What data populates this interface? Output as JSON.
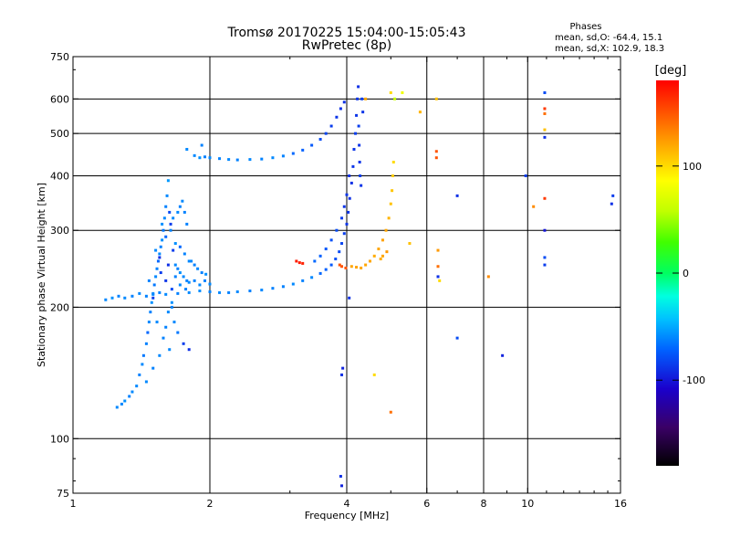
{
  "chart_data": {
    "type": "scatter",
    "title": "Tromsø 20170225 15:04:00-15:05:43",
    "subtitle": "RwPretec (8p)",
    "xlabel": "Frequency [MHz]",
    "ylabel": "Stationary phase Virtual Height [km]",
    "x_scale": "log",
    "y_scale": "log",
    "xlim": [
      1,
      16
    ],
    "ylim": [
      75,
      750
    ],
    "x_ticks": [
      1,
      2,
      4,
      6,
      8,
      10,
      16
    ],
    "x_tick_labels": [
      "1",
      "2",
      "4",
      "6",
      "8",
      "10",
      "16"
    ],
    "x_grid": [
      2,
      4,
      6,
      8,
      10,
      16
    ],
    "y_ticks": [
      75,
      100,
      200,
      300,
      400,
      500,
      600,
      750
    ],
    "y_tick_labels": [
      "75",
      "100",
      "200",
      "300",
      "400",
      "500",
      "600",
      "750"
    ],
    "y_grid": [
      100,
      200,
      300,
      400,
      500,
      600
    ],
    "grid": true,
    "phase_stats": {
      "heading": "Phases",
      "line_o": "mean, sd,O: -64.4, 15.1",
      "line_x": "mean, sd,X: 102.9, 18.3"
    },
    "colorbar": {
      "label": "[deg]",
      "range": [
        -180,
        180
      ],
      "ticks": [
        -100,
        0,
        100
      ],
      "tick_labels": [
        "-100",
        "0",
        "100"
      ]
    },
    "series": [
      {
        "points": [
          [
            1.25,
            118,
            -60
          ],
          [
            1.28,
            120,
            -60
          ],
          [
            1.3,
            122,
            -58
          ],
          [
            1.33,
            125,
            -62
          ],
          [
            1.35,
            128,
            -60
          ],
          [
            1.38,
            132,
            -60
          ],
          [
            1.4,
            140,
            -62
          ],
          [
            1.42,
            148,
            -60
          ],
          [
            1.43,
            155,
            -65
          ],
          [
            1.45,
            165,
            -62
          ],
          [
            1.46,
            175,
            -70
          ],
          [
            1.47,
            185,
            -60
          ],
          [
            1.48,
            195,
            -62
          ],
          [
            1.49,
            205,
            -58
          ],
          [
            1.5,
            215,
            -60
          ],
          [
            1.51,
            225,
            -65
          ],
          [
            1.52,
            235,
            -60
          ],
          [
            1.53,
            245,
            -62
          ],
          [
            1.54,
            255,
            -70
          ],
          [
            1.55,
            265,
            -60
          ],
          [
            1.56,
            275,
            -62
          ],
          [
            1.57,
            285,
            -58
          ],
          [
            1.58,
            300,
            -65
          ],
          [
            1.59,
            320,
            -60
          ],
          [
            1.6,
            340,
            -62
          ],
          [
            1.61,
            360,
            -60
          ],
          [
            1.62,
            390,
            -55
          ],
          [
            1.63,
            330,
            -80
          ],
          [
            1.64,
            310,
            -85
          ],
          [
            1.62,
            250,
            -90
          ],
          [
            1.56,
            240,
            -85
          ],
          [
            1.6,
            230,
            -88
          ],
          [
            1.65,
            220,
            -80
          ],
          [
            1.5,
            210,
            -85
          ],
          [
            1.55,
            260,
            -90
          ],
          [
            1.66,
            270,
            -85
          ],
          [
            1.68,
            250,
            -60
          ],
          [
            1.7,
            245,
            -62
          ],
          [
            1.72,
            240,
            -58
          ],
          [
            1.75,
            235,
            -60
          ],
          [
            1.78,
            230,
            -62
          ],
          [
            1.8,
            228,
            -60
          ],
          [
            1.85,
            230,
            -62
          ],
          [
            1.9,
            225,
            -60
          ],
          [
            1.95,
            230,
            -62
          ],
          [
            2.0,
            226,
            -60
          ],
          [
            1.7,
            330,
            -60
          ],
          [
            1.72,
            340,
            -62
          ],
          [
            1.74,
            350,
            -60
          ],
          [
            1.76,
            330,
            -62
          ],
          [
            1.78,
            310,
            -62
          ],
          [
            1.68,
            280,
            -58
          ],
          [
            1.72,
            275,
            -70
          ],
          [
            1.76,
            265,
            -62
          ],
          [
            1.8,
            255,
            -60
          ],
          [
            1.65,
            200,
            -62
          ],
          [
            1.67,
            185,
            -60
          ],
          [
            1.7,
            175,
            -65
          ],
          [
            1.75,
            165,
            -85
          ],
          [
            1.8,
            160,
            -90
          ],
          [
            1.82,
            255,
            -60
          ],
          [
            1.85,
            250,
            -62
          ],
          [
            1.88,
            245,
            -60
          ],
          [
            1.92,
            240,
            -62
          ],
          [
            1.96,
            238,
            -58
          ],
          [
            1.18,
            208,
            -60
          ],
          [
            1.22,
            210,
            -58
          ],
          [
            1.26,
            212,
            -62
          ],
          [
            1.3,
            210,
            -60
          ],
          [
            1.35,
            212,
            -62
          ],
          [
            1.4,
            215,
            -60
          ],
          [
            1.45,
            212,
            -62
          ],
          [
            1.5,
            214,
            -60
          ],
          [
            1.55,
            216,
            -62
          ],
          [
            1.6,
            214,
            -60
          ],
          [
            1.7,
            215,
            -62
          ],
          [
            1.8,
            216,
            -60
          ],
          [
            1.9,
            218,
            -58
          ],
          [
            2.0,
            217,
            -62
          ],
          [
            2.1,
            216,
            -60
          ],
          [
            2.2,
            216,
            -62
          ],
          [
            2.3,
            217,
            -60
          ],
          [
            2.45,
            218,
            -62
          ],
          [
            2.6,
            219,
            -60
          ],
          [
            2.75,
            221,
            -62
          ],
          [
            2.9,
            223,
            -62
          ],
          [
            3.05,
            226,
            -60
          ],
          [
            3.2,
            230,
            -62
          ],
          [
            3.35,
            234,
            -60
          ],
          [
            3.5,
            239,
            -70
          ],
          [
            3.6,
            244,
            -72
          ],
          [
            3.7,
            250,
            -75
          ],
          [
            3.78,
            258,
            -78
          ],
          [
            3.85,
            268,
            -80
          ],
          [
            3.9,
            280,
            -82
          ],
          [
            3.95,
            295,
            -85
          ],
          [
            4.0,
            310,
            -88
          ],
          [
            4.03,
            330,
            -88
          ],
          [
            4.06,
            355,
            -90
          ],
          [
            4.1,
            385,
            -90
          ],
          [
            4.13,
            420,
            -88
          ],
          [
            4.15,
            460,
            -88
          ],
          [
            4.18,
            500,
            -85
          ],
          [
            4.2,
            550,
            -88
          ],
          [
            4.22,
            600,
            -88
          ],
          [
            4.24,
            640,
            -90
          ],
          [
            4.25,
            520,
            -85
          ],
          [
            4.26,
            470,
            -88
          ],
          [
            4.27,
            430,
            -88
          ],
          [
            4.28,
            400,
            -85
          ],
          [
            4.3,
            380,
            -88
          ],
          [
            4.32,
            600,
            -85
          ],
          [
            4.34,
            560,
            -88
          ],
          [
            1.85,
            445,
            -60
          ],
          [
            1.9,
            440,
            -58
          ],
          [
            1.95,
            442,
            -62
          ],
          [
            2.0,
            440,
            -60
          ],
          [
            2.1,
            438,
            -62
          ],
          [
            2.2,
            436,
            -60
          ],
          [
            2.3,
            435,
            -62
          ],
          [
            2.45,
            436,
            -60
          ],
          [
            2.6,
            437,
            -62
          ],
          [
            2.75,
            440,
            -60
          ],
          [
            2.9,
            444,
            -62
          ],
          [
            3.05,
            450,
            -70
          ],
          [
            3.2,
            458,
            -72
          ],
          [
            3.35,
            470,
            -75
          ],
          [
            3.5,
            485,
            -80
          ],
          [
            3.6,
            500,
            -82
          ],
          [
            3.7,
            520,
            -85
          ],
          [
            3.8,
            545,
            -88
          ],
          [
            3.88,
            570,
            -90
          ],
          [
            3.95,
            590,
            -90
          ],
          [
            1.78,
            460,
            -60
          ],
          [
            1.92,
            470,
            -62
          ],
          [
            3.4,
            255,
            -70
          ],
          [
            3.5,
            262,
            -72
          ],
          [
            3.6,
            272,
            -75
          ],
          [
            3.7,
            285,
            -78
          ],
          [
            3.8,
            300,
            -80
          ],
          [
            3.9,
            320,
            -85
          ],
          [
            3.95,
            340,
            -88
          ],
          [
            4.0,
            362,
            -88
          ],
          [
            4.05,
            400,
            -90
          ],
          [
            3.86,
            250,
            150
          ],
          [
            3.9,
            248,
            150
          ],
          [
            3.98,
            246,
            150
          ],
          [
            3.1,
            255,
            170
          ],
          [
            3.15,
            253,
            170
          ],
          [
            3.2,
            252,
            168
          ],
          [
            4.4,
            250,
            120
          ],
          [
            4.5,
            255,
            120
          ],
          [
            4.6,
            262,
            118
          ],
          [
            4.7,
            272,
            120
          ],
          [
            4.8,
            285,
            122
          ],
          [
            4.88,
            300,
            120
          ],
          [
            4.95,
            320,
            115
          ],
          [
            5.0,
            345,
            110
          ],
          [
            5.03,
            370,
            108
          ],
          [
            5.05,
            400,
            105
          ],
          [
            5.07,
            430,
            100
          ],
          [
            4.3,
            246,
            120
          ],
          [
            4.2,
            247,
            122
          ],
          [
            4.1,
            248,
            120
          ],
          [
            4.9,
            268,
            125
          ],
          [
            4.8,
            262,
            120
          ],
          [
            4.75,
            258,
            118
          ],
          [
            5.1,
            600,
            60
          ],
          [
            5.3,
            620,
            80
          ],
          [
            5.5,
            280,
            110
          ],
          [
            5.8,
            560,
            115
          ],
          [
            4.6,
            140,
            100
          ],
          [
            5.0,
            115,
            140
          ],
          [
            4.4,
            600,
            120
          ],
          [
            3.9,
            140,
            -90
          ],
          [
            3.92,
            145,
            -95
          ],
          [
            3.88,
            82,
            -90
          ],
          [
            3.9,
            78,
            -95
          ],
          [
            4.05,
            210,
            -90
          ],
          [
            5.0,
            620,
            100
          ],
          [
            6.3,
            600,
            110
          ],
          [
            6.3,
            440,
            150
          ],
          [
            6.3,
            455,
            150
          ],
          [
            6.35,
            270,
            125
          ],
          [
            6.35,
            248,
            140
          ],
          [
            6.35,
            235,
            -90
          ],
          [
            6.4,
            230,
            100
          ],
          [
            7.0,
            360,
            -90
          ],
          [
            7.0,
            170,
            -80
          ],
          [
            8.2,
            235,
            130
          ],
          [
            8.8,
            155,
            -95
          ],
          [
            9.9,
            400,
            -85
          ],
          [
            10.3,
            340,
            130
          ],
          [
            10.9,
            620,
            -80
          ],
          [
            10.9,
            570,
            160
          ],
          [
            10.9,
            555,
            140
          ],
          [
            10.9,
            510,
            110
          ],
          [
            10.9,
            490,
            -90
          ],
          [
            10.9,
            355,
            160
          ],
          [
            10.9,
            300,
            -100
          ],
          [
            10.9,
            260,
            -80
          ],
          [
            10.9,
            250,
            -85
          ],
          [
            15.3,
            345,
            -90
          ],
          [
            15.4,
            360,
            -85
          ],
          [
            1.45,
            135,
            -60
          ],
          [
            1.5,
            145,
            -62
          ],
          [
            1.55,
            155,
            -60
          ],
          [
            1.6,
            180,
            -62
          ],
          [
            1.62,
            195,
            -60
          ],
          [
            1.65,
            205,
            -58
          ],
          [
            1.53,
            185,
            -60
          ],
          [
            1.58,
            170,
            -62
          ],
          [
            1.63,
            160,
            -60
          ],
          [
            1.47,
            230,
            -62
          ],
          [
            1.52,
            270,
            -60
          ],
          [
            1.57,
            310,
            -58
          ],
          [
            1.6,
            290,
            -70
          ],
          [
            1.64,
            300,
            -62
          ],
          [
            1.66,
            320,
            -60
          ],
          [
            1.68,
            235,
            -62
          ],
          [
            1.72,
            225,
            -60
          ],
          [
            1.77,
            220,
            -62
          ]
        ]
      }
    ]
  }
}
